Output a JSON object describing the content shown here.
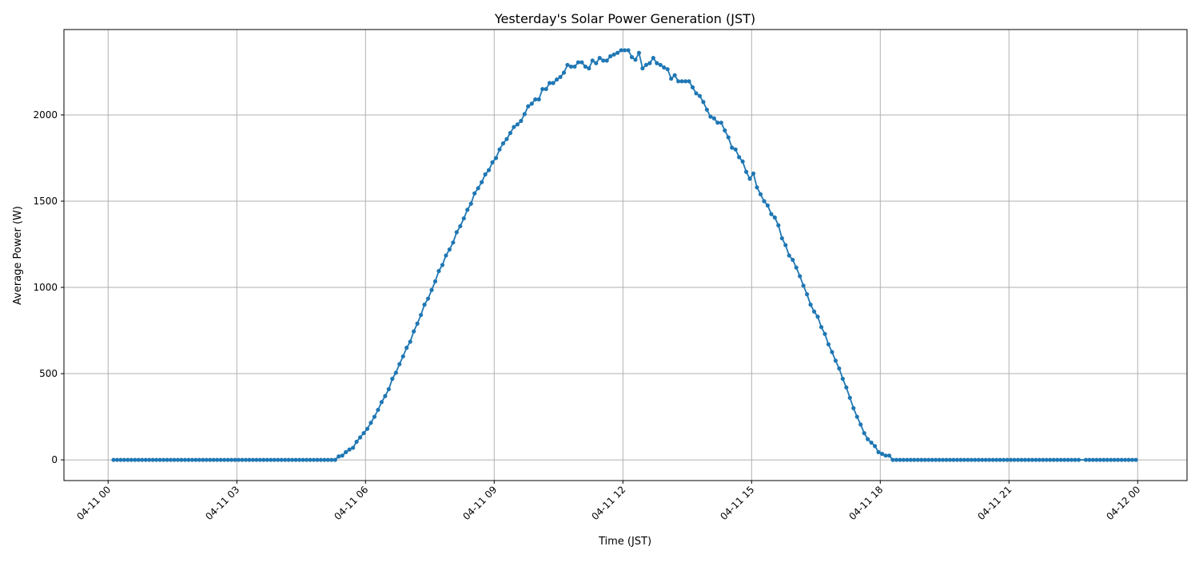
{
  "chart_data": {
    "type": "line",
    "title": "Yesterday's Solar Power Generation (JST)",
    "xlabel": "Time (JST)",
    "ylabel": "Average Power (W)",
    "date": "04-11",
    "xlim_hours": [
      -1.03,
      25.15
    ],
    "ylim": [
      -120,
      2495
    ],
    "grid": true,
    "marker": "circle",
    "color": "#1f77b4",
    "x_ticks": [
      {
        "value": 0,
        "label": "04-11 00"
      },
      {
        "value": 3,
        "label": "04-11 03"
      },
      {
        "value": 6,
        "label": "04-11 06"
      },
      {
        "value": 9,
        "label": "04-11 09"
      },
      {
        "value": 12,
        "label": "04-11 12"
      },
      {
        "value": 15,
        "label": "04-11 15"
      },
      {
        "value": 18,
        "label": "04-11 18"
      },
      {
        "value": 21,
        "label": "04-11 21"
      },
      {
        "value": 24,
        "label": "04-12 00"
      }
    ],
    "y_ticks": [
      {
        "value": 0,
        "label": "0"
      },
      {
        "value": 500,
        "label": "500"
      },
      {
        "value": 1000,
        "label": "1000"
      },
      {
        "value": 1500,
        "label": "1500"
      },
      {
        "value": 2000,
        "label": "2000"
      }
    ],
    "points": [
      [
        "00:07",
        0
      ],
      [
        "00:12",
        0
      ],
      [
        "00:17",
        0
      ],
      [
        "00:22",
        0
      ],
      [
        "00:27",
        0
      ],
      [
        "00:32",
        0
      ],
      [
        "00:37",
        0
      ],
      [
        "00:42",
        0
      ],
      [
        "00:47",
        0
      ],
      [
        "00:52",
        0
      ],
      [
        "00:57",
        0
      ],
      [
        "01:02",
        0
      ],
      [
        "01:07",
        0
      ],
      [
        "01:12",
        0
      ],
      [
        "01:17",
        0
      ],
      [
        "01:22",
        0
      ],
      [
        "01:27",
        0
      ],
      [
        "01:32",
        0
      ],
      [
        "01:37",
        0
      ],
      [
        "01:42",
        0
      ],
      [
        "01:47",
        0
      ],
      [
        "01:52",
        0
      ],
      [
        "01:57",
        0
      ],
      [
        "02:02",
        0
      ],
      [
        "02:07",
        0
      ],
      [
        "02:12",
        0
      ],
      [
        "02:17",
        0
      ],
      [
        "02:22",
        0
      ],
      [
        "02:27",
        0
      ],
      [
        "02:32",
        0
      ],
      [
        "02:37",
        0
      ],
      [
        "02:42",
        0
      ],
      [
        "02:47",
        0
      ],
      [
        "02:52",
        0
      ],
      [
        "02:57",
        0
      ],
      [
        "03:02",
        0
      ],
      [
        "03:07",
        0
      ],
      [
        "03:12",
        0
      ],
      [
        "03:17",
        0
      ],
      [
        "03:22",
        0
      ],
      [
        "03:27",
        0
      ],
      [
        "03:32",
        0
      ],
      [
        "03:37",
        0
      ],
      [
        "03:42",
        0
      ],
      [
        "03:47",
        0
      ],
      [
        "03:52",
        0
      ],
      [
        "03:57",
        0
      ],
      [
        "04:02",
        0
      ],
      [
        "04:07",
        0
      ],
      [
        "04:12",
        0
      ],
      [
        "04:17",
        0
      ],
      [
        "04:22",
        0
      ],
      [
        "04:27",
        0
      ],
      [
        "04:32",
        0
      ],
      [
        "04:37",
        0
      ],
      [
        "04:42",
        0
      ],
      [
        "04:47",
        0
      ],
      [
        "04:52",
        0
      ],
      [
        "04:57",
        0
      ],
      [
        "05:02",
        0
      ],
      [
        "05:07",
        0
      ],
      [
        "05:12",
        0
      ],
      [
        "05:17",
        0
      ],
      [
        "05:22",
        20
      ],
      [
        "05:27",
        25
      ],
      [
        "05:32",
        45
      ],
      [
        "05:37",
        60
      ],
      [
        "05:42",
        70
      ],
      [
        "05:47",
        105
      ],
      [
        "05:52",
        130
      ],
      [
        "05:57",
        155
      ],
      [
        "06:02",
        180
      ],
      [
        "06:07",
        215
      ],
      [
        "06:12",
        250
      ],
      [
        "06:17",
        290
      ],
      [
        "06:22",
        335
      ],
      [
        "06:27",
        370
      ],
      [
        "06:32",
        410
      ],
      [
        "06:37",
        470
      ],
      [
        "06:42",
        505
      ],
      [
        "06:47",
        555
      ],
      [
        "06:52",
        600
      ],
      [
        "06:57",
        650
      ],
      [
        "07:02",
        685
      ],
      [
        "07:07",
        745
      ],
      [
        "07:12",
        790
      ],
      [
        "07:17",
        840
      ],
      [
        "07:22",
        900
      ],
      [
        "07:27",
        935
      ],
      [
        "07:32",
        985
      ],
      [
        "07:37",
        1035
      ],
      [
        "07:42",
        1095
      ],
      [
        "07:47",
        1130
      ],
      [
        "07:52",
        1185
      ],
      [
        "07:57",
        1220
      ],
      [
        "08:02",
        1260
      ],
      [
        "08:07",
        1320
      ],
      [
        "08:12",
        1355
      ],
      [
        "08:17",
        1400
      ],
      [
        "08:22",
        1450
      ],
      [
        "08:27",
        1485
      ],
      [
        "08:32",
        1545
      ],
      [
        "08:37",
        1575
      ],
      [
        "08:42",
        1610
      ],
      [
        "08:47",
        1655
      ],
      [
        "08:52",
        1680
      ],
      [
        "08:57",
        1725
      ],
      [
        "09:02",
        1750
      ],
      [
        "09:07",
        1800
      ],
      [
        "09:12",
        1835
      ],
      [
        "09:17",
        1860
      ],
      [
        "09:22",
        1895
      ],
      [
        "09:27",
        1930
      ],
      [
        "09:32",
        1945
      ],
      [
        "09:37",
        1965
      ],
      [
        "09:42",
        2005
      ],
      [
        "09:47",
        2050
      ],
      [
        "09:52",
        2065
      ],
      [
        "09:57",
        2090
      ],
      [
        "10:02",
        2090
      ],
      [
        "10:07",
        2150
      ],
      [
        "10:12",
        2150
      ],
      [
        "10:17",
        2185
      ],
      [
        "10:22",
        2185
      ],
      [
        "10:27",
        2205
      ],
      [
        "10:32",
        2220
      ],
      [
        "10:37",
        2245
      ],
      [
        "10:42",
        2290
      ],
      [
        "10:47",
        2280
      ],
      [
        "10:52",
        2280
      ],
      [
        "10:57",
        2305
      ],
      [
        "11:02",
        2305
      ],
      [
        "11:07",
        2280
      ],
      [
        "11:12",
        2270
      ],
      [
        "11:17",
        2315
      ],
      [
        "11:22",
        2300
      ],
      [
        "11:27",
        2330
      ],
      [
        "11:32",
        2315
      ],
      [
        "11:37",
        2315
      ],
      [
        "11:42",
        2340
      ],
      [
        "11:47",
        2350
      ],
      [
        "11:52",
        2360
      ],
      [
        "11:57",
        2375
      ],
      [
        "12:02",
        2375
      ],
      [
        "12:07",
        2375
      ],
      [
        "12:12",
        2335
      ],
      [
        "12:17",
        2320
      ],
      [
        "12:22",
        2360
      ],
      [
        "12:27",
        2270
      ],
      [
        "12:32",
        2290
      ],
      [
        "12:37",
        2300
      ],
      [
        "12:42",
        2330
      ],
      [
        "12:47",
        2300
      ],
      [
        "12:52",
        2290
      ],
      [
        "12:57",
        2275
      ],
      [
        "13:02",
        2265
      ],
      [
        "13:07",
        2210
      ],
      [
        "13:12",
        2230
      ],
      [
        "13:17",
        2195
      ],
      [
        "13:22",
        2195
      ],
      [
        "13:27",
        2195
      ],
      [
        "13:32",
        2195
      ],
      [
        "13:37",
        2160
      ],
      [
        "13:42",
        2125
      ],
      [
        "13:47",
        2110
      ],
      [
        "13:52",
        2075
      ],
      [
        "13:57",
        2030
      ],
      [
        "14:02",
        1990
      ],
      [
        "14:07",
        1980
      ],
      [
        "14:12",
        1955
      ],
      [
        "14:17",
        1955
      ],
      [
        "14:22",
        1910
      ],
      [
        "14:27",
        1870
      ],
      [
        "14:32",
        1810
      ],
      [
        "14:37",
        1800
      ],
      [
        "14:42",
        1755
      ],
      [
        "14:47",
        1730
      ],
      [
        "14:52",
        1670
      ],
      [
        "14:57",
        1630
      ],
      [
        "15:02",
        1660
      ],
      [
        "15:07",
        1580
      ],
      [
        "15:12",
        1540
      ],
      [
        "15:17",
        1500
      ],
      [
        "15:22",
        1475
      ],
      [
        "15:27",
        1425
      ],
      [
        "15:32",
        1405
      ],
      [
        "15:37",
        1360
      ],
      [
        "15:42",
        1285
      ],
      [
        "15:47",
        1245
      ],
      [
        "15:52",
        1185
      ],
      [
        "15:57",
        1160
      ],
      [
        "16:02",
        1115
      ],
      [
        "16:07",
        1065
      ],
      [
        "16:12",
        1010
      ],
      [
        "16:17",
        960
      ],
      [
        "16:22",
        900
      ],
      [
        "16:27",
        860
      ],
      [
        "16:32",
        830
      ],
      [
        "16:37",
        770
      ],
      [
        "16:42",
        730
      ],
      [
        "16:47",
        670
      ],
      [
        "16:52",
        625
      ],
      [
        "16:57",
        575
      ],
      [
        "17:02",
        530
      ],
      [
        "17:07",
        470
      ],
      [
        "17:12",
        420
      ],
      [
        "17:17",
        360
      ],
      [
        "17:22",
        300
      ],
      [
        "17:27",
        250
      ],
      [
        "17:32",
        205
      ],
      [
        "17:37",
        155
      ],
      [
        "17:42",
        120
      ],
      [
        "17:47",
        100
      ],
      [
        "17:52",
        80
      ],
      [
        "17:57",
        45
      ],
      [
        "18:02",
        35
      ],
      [
        "18:07",
        25
      ],
      [
        "18:12",
        25
      ],
      [
        "18:17",
        0
      ],
      [
        "18:22",
        0
      ],
      [
        "18:27",
        0
      ],
      [
        "18:32",
        0
      ],
      [
        "18:37",
        0
      ],
      [
        "18:42",
        0
      ],
      [
        "18:47",
        0
      ],
      [
        "18:52",
        0
      ],
      [
        "18:57",
        0
      ],
      [
        "19:02",
        0
      ],
      [
        "19:07",
        0
      ],
      [
        "19:12",
        0
      ],
      [
        "19:17",
        0
      ],
      [
        "19:22",
        0
      ],
      [
        "19:27",
        0
      ],
      [
        "19:32",
        0
      ],
      [
        "19:37",
        0
      ],
      [
        "19:42",
        0
      ],
      [
        "19:47",
        0
      ],
      [
        "19:52",
        0
      ],
      [
        "19:57",
        0
      ],
      [
        "20:02",
        0
      ],
      [
        "20:07",
        0
      ],
      [
        "20:12",
        0
      ],
      [
        "20:17",
        0
      ],
      [
        "20:22",
        0
      ],
      [
        "20:27",
        0
      ],
      [
        "20:32",
        0
      ],
      [
        "20:37",
        0
      ],
      [
        "20:42",
        0
      ],
      [
        "20:47",
        0
      ],
      [
        "20:52",
        0
      ],
      [
        "20:57",
        0
      ],
      [
        "21:02",
        0
      ],
      [
        "21:07",
        0
      ],
      [
        "21:12",
        0
      ],
      [
        "21:17",
        0
      ],
      [
        "21:22",
        0
      ],
      [
        "21:27",
        0
      ],
      [
        "21:32",
        0
      ],
      [
        "21:37",
        0
      ],
      [
        "21:42",
        0
      ],
      [
        "21:47",
        0
      ],
      [
        "21:52",
        0
      ],
      [
        "21:57",
        0
      ],
      [
        "22:02",
        0
      ],
      [
        "22:07",
        0
      ],
      [
        "22:12",
        0
      ],
      [
        "22:17",
        0
      ],
      [
        "22:22",
        0
      ],
      [
        "22:27",
        0
      ],
      [
        "22:32",
        0
      ],
      [
        "22:37",
        0
      ],
      [
        "22:47",
        0
      ],
      [
        "22:52",
        0
      ],
      [
        "22:57",
        0
      ],
      [
        "23:02",
        0
      ],
      [
        "23:07",
        0
      ],
      [
        "23:12",
        0
      ],
      [
        "23:17",
        0
      ],
      [
        "23:22",
        0
      ],
      [
        "23:27",
        0
      ],
      [
        "23:32",
        0
      ],
      [
        "23:37",
        0
      ],
      [
        "23:42",
        0
      ],
      [
        "23:47",
        0
      ],
      [
        "23:52",
        0
      ],
      [
        "23:57",
        0
      ]
    ]
  }
}
